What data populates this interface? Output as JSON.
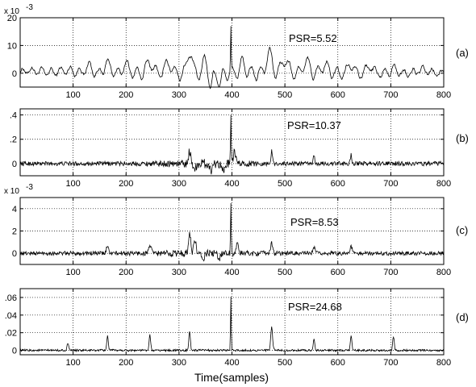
{
  "figure": {
    "xlabel": "Time(samples)"
  },
  "chart_data": [
    {
      "type": "line",
      "panel_label": "(a)",
      "annotation": "PSR=5.52",
      "y_exponent": "x 10",
      "y_exponent_power": "-3",
      "xlim": [
        0,
        800
      ],
      "ylim": [
        -5,
        20
      ],
      "xticks": [
        100,
        200,
        300,
        400,
        500,
        600,
        700,
        800
      ],
      "yticks": [
        0,
        10,
        20
      ],
      "grid": true,
      "series": [
        {
          "peak_x": 398,
          "peak_y": 17,
          "noise_std": 1.2,
          "bumps": [
            [
              20,
              1,
              25
            ],
            [
              90,
              1,
              25
            ],
            [
              130,
              2.5,
              8
            ],
            [
              165,
              3.5,
              8
            ],
            [
              200,
              3,
              8
            ],
            [
              245,
              4,
              8
            ],
            [
              280,
              4,
              8
            ],
            [
              320,
              8,
              6
            ],
            [
              350,
              5,
              6
            ],
            [
              360,
              -5,
              5
            ],
            [
              378,
              -4,
              4
            ],
            [
              420,
              4,
              6
            ],
            [
              470,
              7,
              8
            ],
            [
              500,
              5,
              8
            ],
            [
              540,
              4,
              8
            ],
            [
              575,
              3,
              8
            ],
            [
              625,
              3.5,
              8
            ],
            [
              660,
              2.5,
              8
            ],
            [
              705,
              1.5,
              10
            ],
            [
              760,
              1,
              15
            ]
          ],
          "osc_amp": 2.5,
          "osc_period": 18
        }
      ]
    },
    {
      "type": "line",
      "panel_label": "(b)",
      "annotation": "PSR=10.37",
      "xlim": [
        0,
        800
      ],
      "ylim": [
        -0.1,
        0.45
      ],
      "xticks": [
        100,
        200,
        300,
        400,
        500,
        600,
        700,
        800
      ],
      "yticks": [
        0,
        0.2,
        0.4
      ],
      "grid": true,
      "series": [
        {
          "peak_x": 398,
          "peak_y": 0.4,
          "noise_std": 0.018,
          "bumps": [
            [
              320,
              0.1,
              3
            ],
            [
              330,
              -0.05,
              3
            ],
            [
              360,
              -0.06,
              3
            ],
            [
              385,
              -0.07,
              3
            ],
            [
              405,
              0.1,
              3
            ],
            [
              475,
              0.1,
              2
            ],
            [
              555,
              0.06,
              2
            ],
            [
              625,
              0.07,
              2
            ]
          ],
          "burst_center": 350,
          "burst_width": 70,
          "burst_gain": 2.2,
          "osc_amp": 0,
          "osc_period": 10
        }
      ]
    },
    {
      "type": "line",
      "panel_label": "(c)",
      "annotation": "PSR=8.53",
      "y_exponent": "x 10",
      "y_exponent_power": "-3",
      "xlim": [
        0,
        800
      ],
      "ylim": [
        -1,
        5
      ],
      "xticks": [
        100,
        200,
        300,
        400,
        500,
        600,
        700,
        800
      ],
      "yticks": [
        0,
        2,
        4
      ],
      "grid": true,
      "series": [
        {
          "peak_x": 398,
          "peak_y": 4.5,
          "noise_std": 0.18,
          "bumps": [
            [
              165,
              0.6,
              3
            ],
            [
              245,
              0.8,
              3
            ],
            [
              320,
              1.8,
              3
            ],
            [
              330,
              1.2,
              3
            ],
            [
              345,
              -0.8,
              3
            ],
            [
              375,
              -0.6,
              3
            ],
            [
              410,
              0.8,
              3
            ],
            [
              475,
              0.9,
              3
            ],
            [
              555,
              0.5,
              3
            ],
            [
              625,
              0.6,
              3
            ]
          ],
          "burst_center": 340,
          "burst_width": 110,
          "burst_gain": 1.8,
          "osc_amp": 0,
          "osc_period": 10
        }
      ]
    },
    {
      "type": "line",
      "panel_label": "(d)",
      "annotation": "PSR=24.68",
      "xlim": [
        0,
        800
      ],
      "ylim": [
        -0.005,
        0.07
      ],
      "xticks": [
        100,
        200,
        300,
        400,
        500,
        600,
        700,
        800
      ],
      "yticks": [
        0,
        0.02,
        0.04,
        0.06
      ],
      "grid": true,
      "series": [
        {
          "peak_x": 398,
          "peak_y": 0.061,
          "noise_std": 0.0012,
          "bumps": [
            [
              90,
              0.008,
              2
            ],
            [
              165,
              0.017,
              2
            ],
            [
              245,
              0.017,
              2
            ],
            [
              320,
              0.022,
              2
            ],
            [
              475,
              0.026,
              2.5
            ],
            [
              555,
              0.014,
              2
            ],
            [
              625,
              0.016,
              2
            ],
            [
              705,
              0.016,
              2
            ]
          ],
          "osc_amp": 0,
          "osc_period": 10
        }
      ]
    }
  ]
}
